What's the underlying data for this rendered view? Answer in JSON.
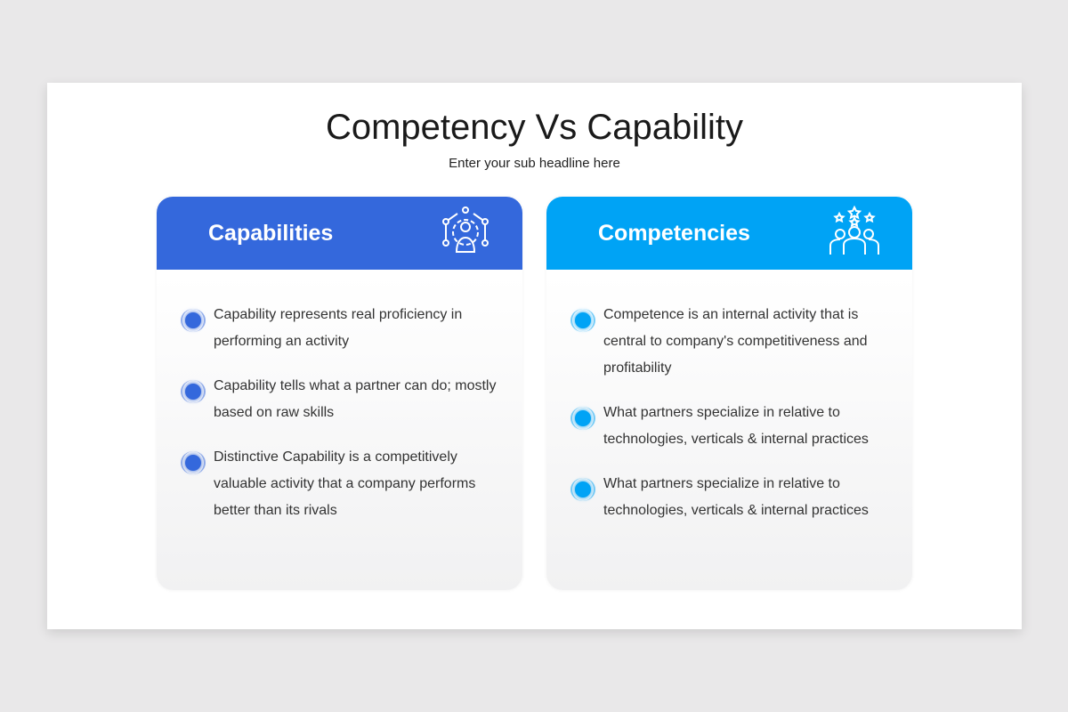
{
  "title": "Competency Vs Capability",
  "subtitle": "Enter your sub headline here",
  "cards": [
    {
      "heading": "Capabilities",
      "color": "#3468dc",
      "icon": "gear-person-network-icon",
      "items": [
        "Capability represents real proficiency in performing an activity",
        "Capability tells what a partner can do; mostly based on raw skills",
        "Distinctive Capability is a competitively valuable activity that a company performs better than its rivals"
      ]
    },
    {
      "heading": "Competencies",
      "color": "#00a3f5",
      "icon": "team-stars-icon",
      "items": [
        "Competence is an internal activity that is central to company's competitiveness and profitability",
        "What partners specialize in relative to technologies, verticals & internal practices",
        "What partners specialize in relative to technologies, verticals & internal practices"
      ]
    }
  ]
}
